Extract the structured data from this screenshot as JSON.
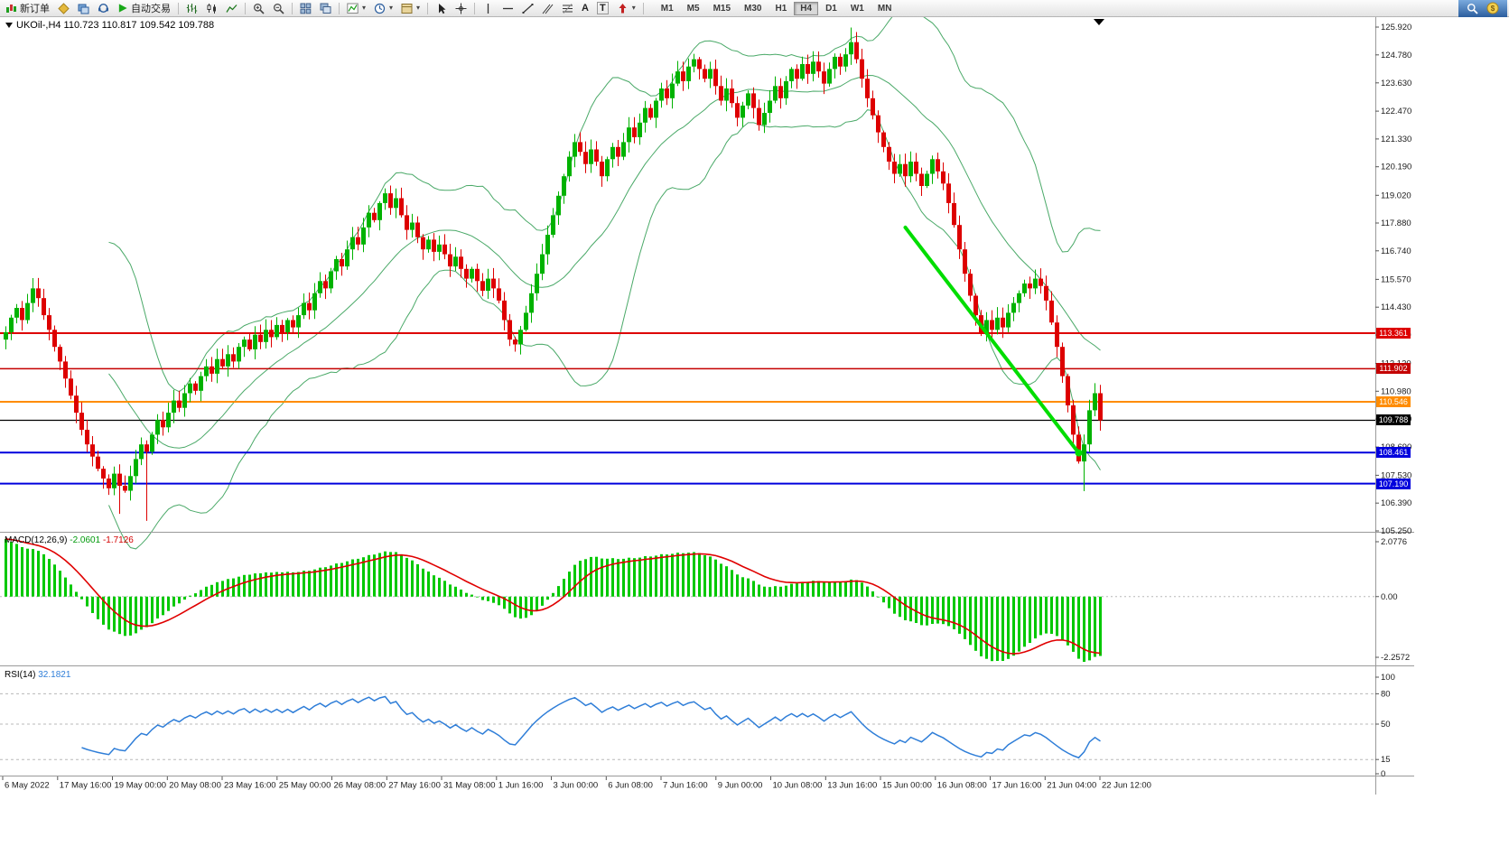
{
  "toolbar": {
    "new_order_label": "新订单",
    "auto_trading_label": "自动交易",
    "text_tool_a": "A",
    "text_tool_t": "T",
    "timeframes": [
      "M1",
      "M5",
      "M15",
      "M30",
      "H1",
      "H4",
      "D1",
      "W1",
      "MN"
    ],
    "active_timeframe": "H4"
  },
  "icons": {
    "caret": "▾",
    "dollar": "$"
  },
  "symbol_info": {
    "symbol": "UKOil-,H4",
    "open": "110.723",
    "high": "110.817",
    "low": "109.542",
    "close": "109.788",
    "text": "UKOil-,H4  110.723 110.817 109.542 109.788"
  },
  "indicators": {
    "macd": {
      "label": "MACD(12,26,9)",
      "value_main": "-2.0601",
      "value_signal": "-1.7126",
      "scale": [
        "2.0776",
        "0.00",
        "-2.2572"
      ]
    },
    "rsi": {
      "label": "RSI(14)",
      "value": "32.1821",
      "scale": [
        "100",
        "80",
        "50",
        "15",
        "0"
      ],
      "levels": [
        80,
        50,
        15
      ]
    }
  },
  "price_scale": {
    "labels": [
      "125.920",
      "124.780",
      "123.630",
      "122.470",
      "121.330",
      "120.190",
      "119.020",
      "117.880",
      "116.740",
      "115.570",
      "114.430",
      "113.290",
      "112.120",
      "110.980",
      "109.840",
      "108.690",
      "107.530",
      "106.390",
      "105.250"
    ]
  },
  "price_lines": [
    {
      "price": 113.361,
      "label": "113.361",
      "color": "#dd0000",
      "thickness": 2
    },
    {
      "price": 111.902,
      "label": "111.902",
      "color": "#c40000",
      "thickness": 1.5
    },
    {
      "price": 110.546,
      "label": "110.546",
      "color": "#ff8c00",
      "thickness": 2
    },
    {
      "price": 109.788,
      "label": "109.788",
      "color": "#000000",
      "thickness": 1.2
    },
    {
      "price": 108.461,
      "label": "108.461",
      "color": "#0000dd",
      "thickness": 2
    },
    {
      "price": 107.19,
      "label": "107.190",
      "color": "#0000dd",
      "thickness": 2
    }
  ],
  "trendline": {
    "from_candle": 166,
    "from_price": 117.7,
    "to_candle": 198,
    "to_price": 108.45,
    "color": "#00dd00",
    "thickness": 4
  },
  "chart_data": {
    "type": "candlestick",
    "symbol": "UKOil-",
    "timeframe": "H4",
    "y_range": [
      105.25,
      125.92
    ],
    "first_open": 113.1,
    "closes": [
      113.4,
      114.0,
      114.4,
      113.9,
      114.6,
      115.2,
      114.8,
      114.1,
      113.5,
      112.8,
      112.2,
      111.5,
      110.8,
      110.1,
      109.4,
      108.8,
      108.3,
      107.8,
      107.4,
      107.0,
      107.6,
      107.1,
      106.9,
      107.5,
      108.2,
      108.8,
      108.5,
      109.2,
      109.8,
      109.5,
      110.1,
      110.6,
      110.3,
      110.9,
      111.3,
      111.0,
      111.6,
      112.0,
      111.7,
      112.3,
      112.0,
      112.5,
      112.2,
      112.8,
      113.1,
      112.7,
      113.3,
      113.0,
      113.5,
      113.2,
      113.7,
      113.4,
      113.9,
      113.6,
      114.1,
      114.6,
      114.3,
      115.0,
      115.5,
      115.2,
      115.9,
      116.4,
      116.1,
      116.8,
      117.3,
      117.0,
      117.7,
      118.3,
      118.0,
      118.7,
      119.1,
      118.5,
      118.9,
      118.2,
      117.6,
      117.9,
      117.3,
      116.8,
      117.2,
      116.7,
      117.0,
      116.6,
      116.1,
      116.5,
      116.0,
      115.6,
      116.0,
      115.5,
      115.1,
      115.6,
      115.2,
      114.7,
      113.9,
      113.1,
      112.9,
      113.5,
      114.2,
      115.0,
      115.8,
      116.6,
      117.4,
      118.2,
      119.0,
      119.8,
      120.6,
      121.2,
      120.8,
      120.3,
      120.9,
      120.4,
      119.8,
      120.5,
      121.0,
      120.6,
      121.2,
      121.8,
      121.4,
      122.0,
      122.6,
      122.2,
      122.9,
      123.4,
      123.0,
      123.6,
      124.1,
      123.7,
      124.3,
      124.6,
      124.2,
      123.8,
      124.2,
      123.5,
      122.9,
      123.4,
      122.8,
      122.2,
      122.7,
      123.2,
      122.6,
      121.9,
      122.4,
      122.9,
      123.5,
      123.0,
      123.7,
      124.2,
      123.8,
      124.4,
      124.0,
      124.5,
      124.1,
      123.6,
      124.2,
      124.7,
      124.3,
      124.8,
      125.3,
      124.6,
      123.8,
      123.0,
      122.3,
      121.6,
      121.0,
      120.4,
      119.9,
      120.3,
      119.8,
      120.4,
      119.9,
      119.4,
      119.9,
      120.5,
      120.0,
      119.5,
      118.7,
      117.8,
      116.8,
      115.8,
      114.9,
      114.1,
      113.4,
      113.9,
      113.5,
      114.0,
      113.6,
      114.2,
      114.6,
      115.0,
      115.4,
      115.2,
      115.6,
      115.3,
      114.7,
      113.8,
      112.8,
      111.6,
      110.4,
      109.2,
      108.1,
      108.8,
      110.2,
      110.9,
      109.788
    ],
    "wick_overrides_low": {
      "21": 105.95,
      "26": 105.66,
      "199": 106.88
    },
    "wick_overrides_high": {
      "156": 125.9
    },
    "bollinger": {
      "period": 20,
      "deviation": 2
    },
    "macd": {
      "fast": 12,
      "slow": 26,
      "signal": 9
    },
    "rsi_period": 14,
    "time_labels": [
      "6 May 2022",
      "17 May 16:00",
      "19 May 00:00",
      "20 May 08:00",
      "23 May 16:00",
      "25 May 00:00",
      "26 May 08:00",
      "27 May 16:00",
      "31 May 08:00",
      "1 Jun 16:00",
      "3 Jun 00:00",
      "6 Jun 08:00",
      "7 Jun 16:00",
      "9 Jun 00:00",
      "10 Jun 08:00",
      "13 Jun 16:00",
      "15 Jun 00:00",
      "16 Jun 08:00",
      "17 Jun 16:00",
      "21 Jun 04:00",
      "22 Jun 12:00"
    ]
  },
  "colors": {
    "candle_up": "#00b200",
    "candle_down": "#dd0000",
    "bollinger": "#4aa968",
    "macd_hist": "#00c800",
    "macd_signal": "#e00000",
    "rsi_line": "#2f7ed8",
    "grid": "#b8b8b8",
    "panel_border": "#9a9a9a"
  }
}
